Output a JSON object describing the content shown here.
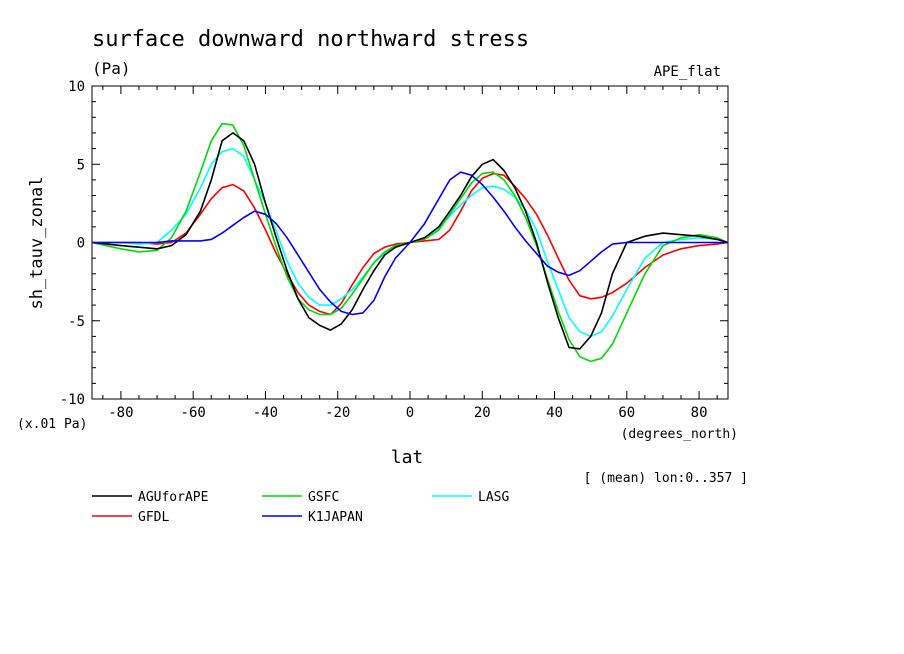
{
  "title": "surface downward northward stress",
  "units": "(Pa)",
  "experiment": "APE_flat",
  "scale_note": "(x.01 Pa)",
  "x_unit": "(degrees_north)",
  "mean_note": "[ (mean) lon:0..357 ]",
  "chart_data": {
    "type": "line",
    "title": "surface downward northward stress",
    "xlabel": "lat",
    "ylabel": "sh_tauv_zonal",
    "xlim": [
      -88,
      88
    ],
    "ylim": [
      -10,
      10
    ],
    "xticks": [
      -80,
      -60,
      -40,
      -20,
      0,
      20,
      40,
      60,
      80
    ],
    "xtick_labels": [
      "-80",
      "-60",
      "-40",
      "-20",
      "0",
      "20",
      "40",
      "60",
      "80"
    ],
    "yticks": [
      -10,
      -5,
      0,
      5,
      10
    ],
    "ytick_labels": [
      "-10",
      "-5",
      "0",
      "5",
      "10"
    ],
    "grid": false,
    "legend_position": "bottom",
    "series": [
      {
        "name": "AGUforAPE",
        "color": "#000000",
        "x": [
          -88,
          -80,
          -75,
          -70,
          -66,
          -62,
          -58,
          -55,
          -52,
          -49,
          -46,
          -43,
          -40,
          -37,
          -34,
          -31,
          -28,
          -25,
          -22,
          -19,
          -16,
          -13,
          -10,
          -7,
          -4,
          0,
          4,
          8,
          11,
          14,
          17,
          20,
          23,
          26,
          29,
          32,
          35,
          38,
          41,
          44,
          47,
          50,
          53,
          56,
          60,
          65,
          70,
          75,
          80,
          85,
          88
        ],
        "y": [
          0,
          -0.2,
          -0.3,
          -0.4,
          -0.2,
          0.5,
          2.0,
          4.0,
          6.5,
          7.0,
          6.5,
          5.0,
          2.5,
          0.3,
          -1.8,
          -3.6,
          -4.8,
          -5.3,
          -5.6,
          -5.2,
          -4.3,
          -3.0,
          -1.8,
          -0.8,
          -0.3,
          0,
          0.3,
          1.0,
          2.0,
          3.0,
          4.2,
          5.0,
          5.3,
          4.6,
          3.5,
          2.0,
          0,
          -2.5,
          -4.8,
          -6.7,
          -6.8,
          -6.0,
          -4.5,
          -2.0,
          0,
          0.4,
          0.6,
          0.5,
          0.4,
          0.2,
          0
        ]
      },
      {
        "name": "GSFC",
        "color": "#00dd00",
        "x": [
          -88,
          -80,
          -75,
          -70,
          -66,
          -62,
          -58,
          -55,
          -52,
          -49,
          -46,
          -43,
          -40,
          -37,
          -34,
          -31,
          -28,
          -25,
          -22,
          -19,
          -16,
          -13,
          -10,
          -7,
          -4,
          0,
          4,
          8,
          11,
          14,
          17,
          20,
          23,
          26,
          29,
          32,
          35,
          38,
          41,
          44,
          47,
          50,
          53,
          56,
          60,
          65,
          70,
          75,
          80,
          85,
          88
        ],
        "y": [
          0,
          -0.4,
          -0.6,
          -0.5,
          0.3,
          2.0,
          4.5,
          6.5,
          7.6,
          7.5,
          6.2,
          4.0,
          1.8,
          -0.3,
          -2.2,
          -3.6,
          -4.3,
          -4.6,
          -4.6,
          -4.2,
          -3.3,
          -2.3,
          -1.3,
          -0.6,
          -0.2,
          0,
          0.2,
          0.8,
          1.8,
          2.8,
          3.8,
          4.4,
          4.5,
          4.0,
          3.0,
          1.6,
          -0.2,
          -2.3,
          -4.4,
          -6.2,
          -7.3,
          -7.6,
          -7.4,
          -6.5,
          -4.5,
          -2.0,
          -0.2,
          0.3,
          0.5,
          0.3,
          0
        ]
      },
      {
        "name": "LASG",
        "color": "#00ffff",
        "x": [
          -88,
          -80,
          -75,
          -70,
          -66,
          -62,
          -58,
          -55,
          -52,
          -49,
          -46,
          -43,
          -40,
          -37,
          -34,
          -31,
          -28,
          -25,
          -22,
          -19,
          -16,
          -13,
          -10,
          -7,
          -4,
          0,
          4,
          8,
          11,
          14,
          17,
          20,
          23,
          26,
          29,
          32,
          35,
          38,
          41,
          44,
          47,
          50,
          53,
          56,
          60,
          65,
          70,
          75,
          80,
          85,
          88
        ],
        "y": [
          0,
          0,
          -0.1,
          0,
          0.8,
          1.8,
          3.5,
          5.0,
          5.8,
          6.0,
          5.5,
          4.0,
          2.5,
          0.7,
          -1.2,
          -2.6,
          -3.5,
          -4.0,
          -4.0,
          -3.6,
          -3.0,
          -2.2,
          -1.3,
          -0.7,
          -0.3,
          0,
          0.3,
          0.9,
          1.7,
          2.4,
          3.0,
          3.5,
          3.6,
          3.4,
          2.9,
          2.1,
          0.8,
          -1.2,
          -3.0,
          -4.8,
          -5.7,
          -6.0,
          -5.7,
          -4.7,
          -3.0,
          -1.0,
          0,
          0.2,
          0.3,
          0.2,
          0
        ]
      },
      {
        "name": "GFDL",
        "color": "#ff0000",
        "x": [
          -88,
          -80,
          -75,
          -70,
          -66,
          -62,
          -58,
          -55,
          -52,
          -49,
          -46,
          -43,
          -40,
          -37,
          -34,
          -31,
          -28,
          -25,
          -22,
          -19,
          -16,
          -13,
          -10,
          -7,
          -4,
          0,
          4,
          8,
          11,
          14,
          17,
          20,
          23,
          26,
          29,
          32,
          35,
          38,
          41,
          44,
          47,
          50,
          53,
          56,
          60,
          65,
          70,
          75,
          80,
          85,
          88
        ],
        "y": [
          0,
          0,
          0,
          -0.1,
          0,
          0.6,
          1.8,
          2.8,
          3.5,
          3.7,
          3.3,
          2.2,
          0.8,
          -0.7,
          -2.0,
          -3.2,
          -4.0,
          -4.4,
          -4.6,
          -3.9,
          -2.7,
          -1.6,
          -0.7,
          -0.3,
          -0.1,
          0,
          0.1,
          0.2,
          0.8,
          2.0,
          3.3,
          4.1,
          4.4,
          4.3,
          3.6,
          2.8,
          1.8,
          0.5,
          -1.0,
          -2.4,
          -3.4,
          -3.6,
          -3.5,
          -3.2,
          -2.6,
          -1.6,
          -0.8,
          -0.4,
          -0.2,
          -0.1,
          0
        ]
      },
      {
        "name": "K1JAPAN",
        "color": "#0000ff",
        "x": [
          -88,
          -80,
          -75,
          -70,
          -66,
          -62,
          -58,
          -55,
          -52,
          -49,
          -46,
          -43,
          -40,
          -37,
          -34,
          -31,
          -28,
          -25,
          -22,
          -19,
          -16,
          -13,
          -10,
          -7,
          -4,
          0,
          4,
          8,
          11,
          14,
          17,
          20,
          23,
          26,
          29,
          32,
          35,
          38,
          41,
          44,
          47,
          50,
          53,
          56,
          60,
          65,
          70,
          75,
          80,
          85,
          88
        ],
        "y": [
          0,
          0,
          0,
          0,
          0.1,
          0.1,
          0.1,
          0.2,
          0.6,
          1.1,
          1.6,
          2.0,
          1.8,
          1.2,
          0.3,
          -0.8,
          -1.9,
          -3.0,
          -3.8,
          -4.4,
          -4.6,
          -4.5,
          -3.7,
          -2.2,
          -1.0,
          0,
          1.2,
          2.8,
          4.0,
          4.5,
          4.3,
          3.7,
          2.9,
          2.0,
          1.0,
          0.1,
          -0.7,
          -1.5,
          -1.9,
          -2.1,
          -1.8,
          -1.2,
          -0.6,
          -0.1,
          0,
          0,
          0,
          0,
          0,
          0,
          0
        ]
      }
    ]
  }
}
